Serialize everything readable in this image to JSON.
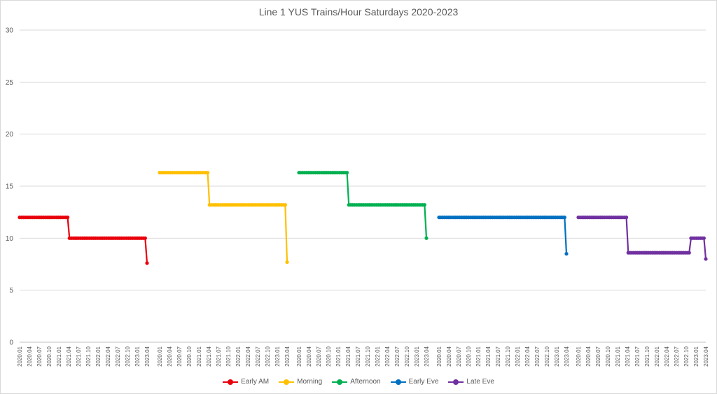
{
  "chart_data": {
    "type": "line",
    "title": "Line 1 YUS Trains/Hour Saturdays 2020-2023",
    "xlabel": "",
    "ylabel": "",
    "ylim": [
      0,
      30
    ],
    "yticks": [
      0,
      5,
      10,
      15,
      20,
      25,
      30
    ],
    "grid": true,
    "legend_position": "bottom",
    "category_labels": [
      "2020.01",
      "2020.04",
      "2020.07",
      "2020.10",
      "2021.01",
      "2021.04",
      "2021.07",
      "2021.10",
      "2022.01",
      "2022.04",
      "2022.07",
      "2022.10",
      "2023.01",
      "2023.04"
    ],
    "series": [
      {
        "name": "Early AM",
        "color": "#e8000b",
        "values": [
          12,
          12,
          12,
          12,
          12,
          12,
          12,
          12,
          12,
          12,
          12,
          12,
          12,
          12,
          12,
          12,
          12,
          12,
          12,
          12,
          12,
          12,
          12,
          12,
          12,
          12,
          12,
          10,
          10,
          10,
          10,
          10,
          10,
          10,
          10,
          10,
          10,
          10,
          10,
          10,
          10,
          10,
          10,
          10,
          10,
          10,
          10,
          10,
          10,
          10,
          10,
          10,
          10,
          10,
          10,
          10,
          10,
          10,
          10,
          10,
          10,
          10,
          10,
          10,
          10,
          10,
          10,
          10,
          10,
          7.6
        ]
      },
      {
        "name": "Morning",
        "color": "#ffc000",
        "values": [
          16.3,
          16.3,
          16.3,
          16.3,
          16.3,
          16.3,
          16.3,
          16.3,
          16.3,
          16.3,
          16.3,
          16.3,
          16.3,
          16.3,
          16.3,
          16.3,
          16.3,
          16.3,
          16.3,
          16.3,
          16.3,
          16.3,
          16.3,
          16.3,
          16.3,
          16.3,
          16.3,
          13.2,
          13.2,
          13.2,
          13.2,
          13.2,
          13.2,
          13.2,
          13.2,
          13.2,
          13.2,
          13.2,
          13.2,
          13.2,
          13.2,
          13.2,
          13.2,
          13.2,
          13.2,
          13.2,
          13.2,
          13.2,
          13.2,
          13.2,
          13.2,
          13.2,
          13.2,
          13.2,
          13.2,
          13.2,
          13.2,
          13.2,
          13.2,
          13.2,
          13.2,
          13.2,
          13.2,
          13.2,
          13.2,
          13.2,
          13.2,
          13.2,
          13.2,
          7.7
        ]
      },
      {
        "name": "Afternoon",
        "color": "#00b050",
        "values": [
          16.3,
          16.3,
          16.3,
          16.3,
          16.3,
          16.3,
          16.3,
          16.3,
          16.3,
          16.3,
          16.3,
          16.3,
          16.3,
          16.3,
          16.3,
          16.3,
          16.3,
          16.3,
          16.3,
          16.3,
          16.3,
          16.3,
          16.3,
          16.3,
          16.3,
          16.3,
          16.3,
          13.2,
          13.2,
          13.2,
          13.2,
          13.2,
          13.2,
          13.2,
          13.2,
          13.2,
          13.2,
          13.2,
          13.2,
          13.2,
          13.2,
          13.2,
          13.2,
          13.2,
          13.2,
          13.2,
          13.2,
          13.2,
          13.2,
          13.2,
          13.2,
          13.2,
          13.2,
          13.2,
          13.2,
          13.2,
          13.2,
          13.2,
          13.2,
          13.2,
          13.2,
          13.2,
          13.2,
          13.2,
          13.2,
          13.2,
          13.2,
          13.2,
          13.2,
          10
        ]
      },
      {
        "name": "Early Eve",
        "color": "#0070c0",
        "values": [
          12,
          12,
          12,
          12,
          12,
          12,
          12,
          12,
          12,
          12,
          12,
          12,
          12,
          12,
          12,
          12,
          12,
          12,
          12,
          12,
          12,
          12,
          12,
          12,
          12,
          12,
          12,
          12,
          12,
          12,
          12,
          12,
          12,
          12,
          12,
          12,
          12,
          12,
          12,
          12,
          12,
          12,
          12,
          12,
          12,
          12,
          12,
          12,
          12,
          12,
          12,
          12,
          12,
          12,
          12,
          12,
          12,
          12,
          12,
          12,
          12,
          12,
          12,
          12,
          12,
          12,
          12,
          12,
          12,
          8.5
        ]
      },
      {
        "name": "Late Eve",
        "color": "#7030a0",
        "values": [
          12,
          12,
          12,
          12,
          12,
          12,
          12,
          12,
          12,
          12,
          12,
          12,
          12,
          12,
          12,
          12,
          12,
          12,
          12,
          12,
          12,
          12,
          12,
          12,
          12,
          12,
          12,
          8.6,
          8.6,
          8.6,
          8.6,
          8.6,
          8.6,
          8.6,
          8.6,
          8.6,
          8.6,
          8.6,
          8.6,
          8.6,
          8.6,
          8.6,
          8.6,
          8.6,
          8.6,
          8.6,
          8.6,
          8.6,
          8.6,
          8.6,
          8.6,
          8.6,
          8.6,
          8.6,
          8.6,
          8.6,
          8.6,
          8.6,
          8.6,
          8.6,
          8.6,
          10,
          10,
          10,
          10,
          10,
          10,
          10,
          10,
          8
        ]
      }
    ]
  }
}
